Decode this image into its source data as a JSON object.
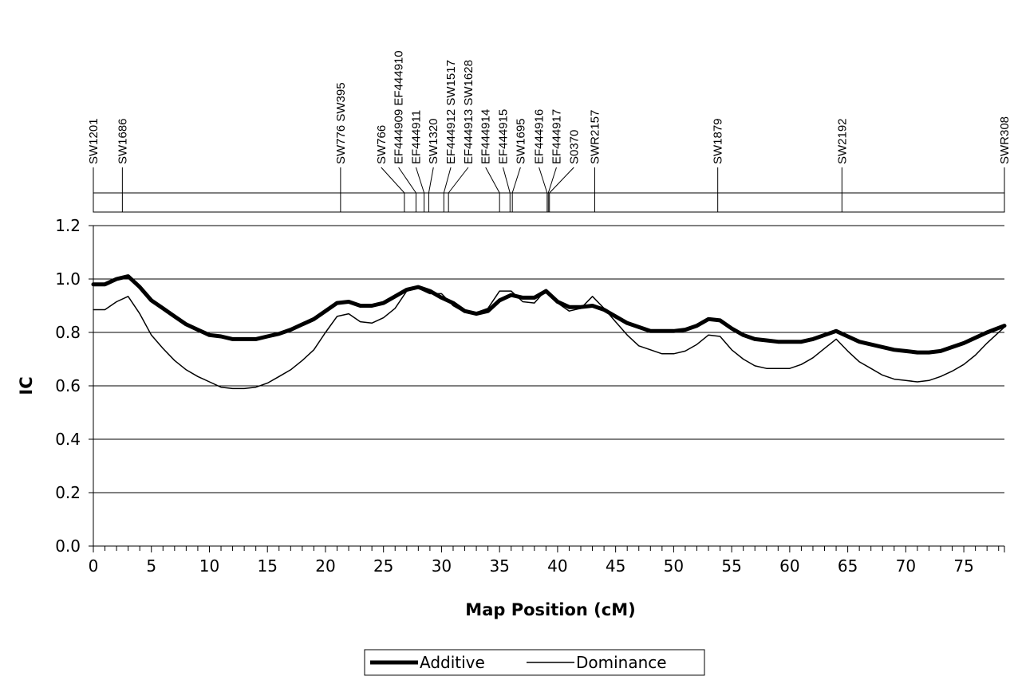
{
  "chart_data": {
    "type": "line",
    "title": "",
    "xlabel": "Map Position (cM)",
    "ylabel": "IC",
    "xlim": [
      0,
      78.5
    ],
    "ylim": [
      0,
      1.2
    ],
    "x_ticks": [
      "0",
      "5",
      "10",
      "15",
      "20",
      "25",
      "30",
      "35",
      "40",
      "45",
      "50",
      "55",
      "60",
      "65",
      "70",
      "75"
    ],
    "y_ticks": [
      "0.0",
      "0.2",
      "0.4",
      "0.6",
      "0.8",
      "1.0",
      "1.2"
    ],
    "grid": "horizontal",
    "legend_position": "bottom",
    "markers": [
      {
        "name": "SW1201",
        "pos": 0,
        "label_pos": 0
      },
      {
        "name": "SW1686",
        "pos": 2.5,
        "label_pos": 2.5
      },
      {
        "name": "SW776 SW395",
        "pos": 21.3,
        "label_pos": 21.3
      },
      {
        "name": "SW766",
        "pos": 26.8,
        "label_pos": 24.8
      },
      {
        "name": "EF444909 EF444910",
        "pos": 27.8,
        "label_pos": 26.3
      },
      {
        "name": "EF444911",
        "pos": 28.5,
        "label_pos": 27.8
      },
      {
        "name": "SW1320",
        "pos": 28.9,
        "label_pos": 29.3
      },
      {
        "name": "EF444912 SW1517",
        "pos": 30.2,
        "label_pos": 30.8
      },
      {
        "name": "EF444913 SW1628",
        "pos": 30.6,
        "label_pos": 32.3
      },
      {
        "name": "EF444914",
        "pos": 35.0,
        "label_pos": 33.8
      },
      {
        "name": "EF444915",
        "pos": 35.9,
        "label_pos": 35.3
      },
      {
        "name": "SW1695",
        "pos": 36.1,
        "label_pos": 36.8
      },
      {
        "name": "EF444916",
        "pos": 39.1,
        "label_pos": 38.4
      },
      {
        "name": "EF444917",
        "pos": 39.2,
        "label_pos": 39.9
      },
      {
        "name": "S0370",
        "pos": 39.3,
        "label_pos": 41.4
      },
      {
        "name": "SWR2157",
        "pos": 43.2,
        "label_pos": 43.2
      },
      {
        "name": "SW1879",
        "pos": 53.8,
        "label_pos": 53.8
      },
      {
        "name": "SW2192",
        "pos": 64.5,
        "label_pos": 64.5
      },
      {
        "name": "SWR308",
        "pos": 78.5,
        "label_pos": 78.5
      }
    ],
    "x": [
      0,
      1,
      2,
      3,
      4,
      5,
      6,
      7,
      8,
      9,
      10,
      11,
      12,
      13,
      14,
      15,
      16,
      17,
      18,
      19,
      20,
      21,
      22,
      23,
      24,
      25,
      26,
      27,
      28,
      29,
      30,
      31,
      32,
      33,
      34,
      35,
      36,
      37,
      38,
      39,
      40,
      41,
      42,
      43,
      44,
      45,
      46,
      47,
      48,
      49,
      50,
      51,
      52,
      53,
      54,
      55,
      56,
      57,
      58,
      59,
      60,
      61,
      62,
      63,
      64,
      65,
      66,
      67,
      68,
      69,
      70,
      71,
      72,
      73,
      74,
      75,
      76,
      77,
      78.5
    ],
    "series": [
      {
        "name": "Additive",
        "color": "#000000",
        "width": "thick",
        "values": [
          0.98,
          0.98,
          1.0,
          1.01,
          0.97,
          0.92,
          0.89,
          0.86,
          0.83,
          0.81,
          0.79,
          0.785,
          0.775,
          0.775,
          0.775,
          0.785,
          0.795,
          0.81,
          0.83,
          0.85,
          0.88,
          0.91,
          0.915,
          0.9,
          0.9,
          0.91,
          0.935,
          0.96,
          0.97,
          0.955,
          0.93,
          0.91,
          0.88,
          0.87,
          0.88,
          0.92,
          0.94,
          0.93,
          0.93,
          0.955,
          0.915,
          0.895,
          0.895,
          0.9,
          0.885,
          0.86,
          0.835,
          0.82,
          0.805,
          0.805,
          0.805,
          0.81,
          0.825,
          0.85,
          0.845,
          0.815,
          0.79,
          0.775,
          0.77,
          0.765,
          0.765,
          0.765,
          0.775,
          0.79,
          0.805,
          0.785,
          0.765,
          0.755,
          0.745,
          0.735,
          0.73,
          0.725,
          0.725,
          0.73,
          0.745,
          0.76,
          0.78,
          0.8,
          0.825
        ]
      },
      {
        "name": "Dominance",
        "color": "#000000",
        "width": "thin",
        "values": [
          0.885,
          0.885,
          0.915,
          0.935,
          0.87,
          0.79,
          0.74,
          0.695,
          0.66,
          0.635,
          0.615,
          0.595,
          0.59,
          0.59,
          0.595,
          0.61,
          0.635,
          0.66,
          0.695,
          0.735,
          0.8,
          0.86,
          0.87,
          0.84,
          0.835,
          0.855,
          0.89,
          0.955,
          0.965,
          0.945,
          0.945,
          0.9,
          0.875,
          0.875,
          0.89,
          0.955,
          0.955,
          0.915,
          0.91,
          0.96,
          0.91,
          0.88,
          0.89,
          0.935,
          0.89,
          0.84,
          0.79,
          0.75,
          0.735,
          0.72,
          0.72,
          0.73,
          0.755,
          0.79,
          0.785,
          0.735,
          0.7,
          0.675,
          0.665,
          0.665,
          0.665,
          0.68,
          0.705,
          0.74,
          0.775,
          0.73,
          0.69,
          0.665,
          0.64,
          0.625,
          0.62,
          0.615,
          0.62,
          0.635,
          0.655,
          0.68,
          0.715,
          0.76,
          0.82
        ]
      }
    ]
  }
}
